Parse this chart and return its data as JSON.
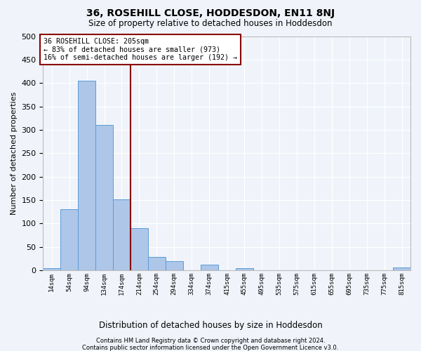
{
  "title": "36, ROSEHILL CLOSE, HODDESDON, EN11 8NJ",
  "subtitle": "Size of property relative to detached houses in Hoddesdon",
  "xlabel": "Distribution of detached houses by size in Hoddesdon",
  "ylabel": "Number of detached properties",
  "bin_labels": [
    "14sqm",
    "54sqm",
    "94sqm",
    "134sqm",
    "174sqm",
    "214sqm",
    "254sqm",
    "294sqm",
    "334sqm",
    "374sqm",
    "415sqm",
    "455sqm",
    "495sqm",
    "535sqm",
    "575sqm",
    "615sqm",
    "655sqm",
    "695sqm",
    "735sqm",
    "775sqm",
    "815sqm"
  ],
  "bar_values": [
    5,
    130,
    405,
    310,
    152,
    90,
    28,
    20,
    0,
    12,
    0,
    5,
    0,
    0,
    0,
    0,
    0,
    0,
    0,
    0,
    6
  ],
  "bar_color": "#aec6e8",
  "bar_edge_color": "#5b9bd5",
  "vline_color": "#8b0000",
  "annotation_title": "36 ROSEHILL CLOSE: 205sqm",
  "annotation_line1": "← 83% of detached houses are smaller (973)",
  "annotation_line2": "16% of semi-detached houses are larger (192) →",
  "annotation_box_color": "#8b0000",
  "ylim": [
    0,
    500
  ],
  "yticks": [
    0,
    50,
    100,
    150,
    200,
    250,
    300,
    350,
    400,
    450,
    500
  ],
  "footnote1": "Contains HM Land Registry data © Crown copyright and database right 2024.",
  "footnote2": "Contains public sector information licensed under the Open Government Licence v3.0.",
  "bg_color": "#f0f4fa",
  "plot_bg_color": "#f0f4fa",
  "grid_color": "#ffffff",
  "bin_edges": [
    14,
    54,
    94,
    134,
    174,
    214,
    254,
    294,
    334,
    374,
    415,
    455,
    495,
    535,
    575,
    615,
    655,
    695,
    735,
    775,
    815,
    855
  ],
  "vline_bin_index": 5
}
